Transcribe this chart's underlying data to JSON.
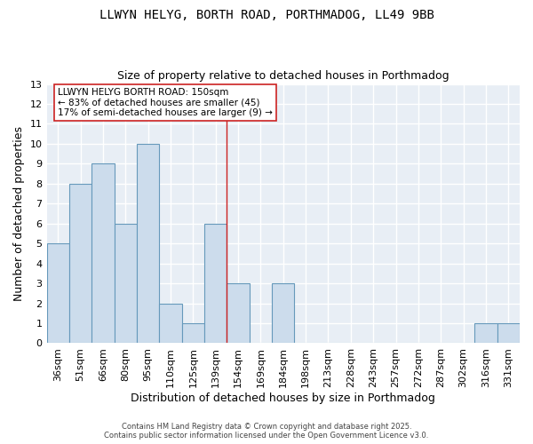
{
  "title1": "LLWYN HELYG, BORTH ROAD, PORTHMADOG, LL49 9BB",
  "title2": "Size of property relative to detached houses in Porthmadog",
  "xlabel": "Distribution of detached houses by size in Porthmadog",
  "ylabel": "Number of detached properties",
  "categories": [
    "36sqm",
    "51sqm",
    "66sqm",
    "80sqm",
    "95sqm",
    "110sqm",
    "125sqm",
    "139sqm",
    "154sqm",
    "169sqm",
    "184sqm",
    "198sqm",
    "213sqm",
    "228sqm",
    "243sqm",
    "257sqm",
    "272sqm",
    "287sqm",
    "302sqm",
    "316sqm",
    "331sqm"
  ],
  "values": [
    5,
    8,
    9,
    6,
    10,
    2,
    1,
    6,
    3,
    0,
    3,
    0,
    0,
    0,
    0,
    0,
    0,
    0,
    0,
    1,
    1
  ],
  "bar_color": "#ccdcec",
  "bar_edge_color": "#6699bb",
  "vline_color": "#cc2222",
  "annotation_text": "LLWYN HELYG BORTH ROAD: 150sqm\n← 83% of detached houses are smaller (45)\n17% of semi-detached houses are larger (9) →",
  "ylim": [
    0,
    13
  ],
  "yticks": [
    0,
    1,
    2,
    3,
    4,
    5,
    6,
    7,
    8,
    9,
    10,
    11,
    12,
    13
  ],
  "background_color": "#e8eef5",
  "grid_color": "#ffffff",
  "footnote": "Contains HM Land Registry data © Crown copyright and database right 2025.\nContains public sector information licensed under the Open Government Licence v3.0.",
  "title1_fontsize": 10,
  "title2_fontsize": 9,
  "xlabel_fontsize": 9,
  "ylabel_fontsize": 9,
  "tick_fontsize": 8,
  "footnote_fontsize": 6,
  "annot_fontsize": 7.5
}
